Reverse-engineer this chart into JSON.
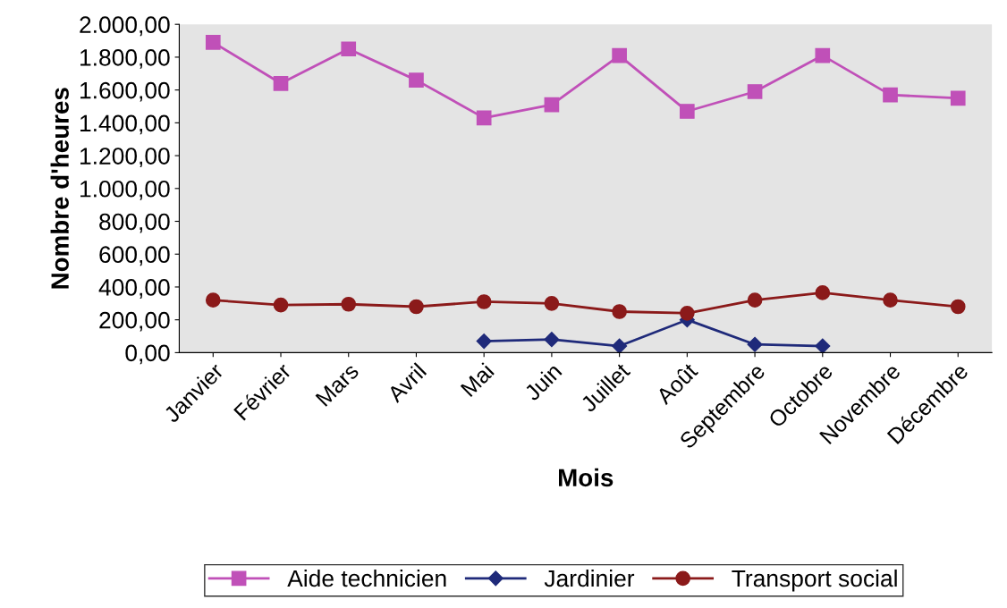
{
  "chart_data": {
    "type": "line",
    "xlabel": "Mois",
    "ylabel": "Nombre d'heures",
    "categories": [
      "Janvier",
      "Février",
      "Mars",
      "Avril",
      "Mai",
      "Juin",
      "Juillet",
      "Août",
      "Septembre",
      "Octobre",
      "Novembre",
      "Décembre"
    ],
    "series": [
      {
        "name": "Aide technicien",
        "color": "#c050b8",
        "marker": "square",
        "values": [
          1890,
          1640,
          1850,
          1660,
          1430,
          1510,
          1810,
          1470,
          1590,
          1810,
          1570,
          1550
        ]
      },
      {
        "name": "Jardinier",
        "color": "#1f2a7a",
        "marker": "diamond",
        "values": [
          null,
          null,
          null,
          null,
          70,
          80,
          40,
          200,
          50,
          40,
          null,
          null
        ]
      },
      {
        "name": "Transport social",
        "color": "#8b1a1a",
        "marker": "circle",
        "values": [
          320,
          290,
          295,
          280,
          310,
          300,
          250,
          240,
          320,
          365,
          320,
          280
        ]
      }
    ],
    "ylim": [
      0,
      2000
    ],
    "yticks": [
      {
        "value": 0,
        "label": "0,00"
      },
      {
        "value": 200,
        "label": "200,00"
      },
      {
        "value": 400,
        "label": "400,00"
      },
      {
        "value": 600,
        "label": "600,00"
      },
      {
        "value": 800,
        "label": "800,00"
      },
      {
        "value": 1000,
        "label": "1.000,00"
      },
      {
        "value": 1200,
        "label": "1.200,00"
      },
      {
        "value": 1400,
        "label": "1.400,00"
      },
      {
        "value": 1600,
        "label": "1.600,00"
      },
      {
        "value": 1800,
        "label": "1.800,00"
      },
      {
        "value": 2000,
        "label": "2.000,00"
      }
    ],
    "grid": false,
    "legend": "bottom",
    "line_style": "solid"
  }
}
